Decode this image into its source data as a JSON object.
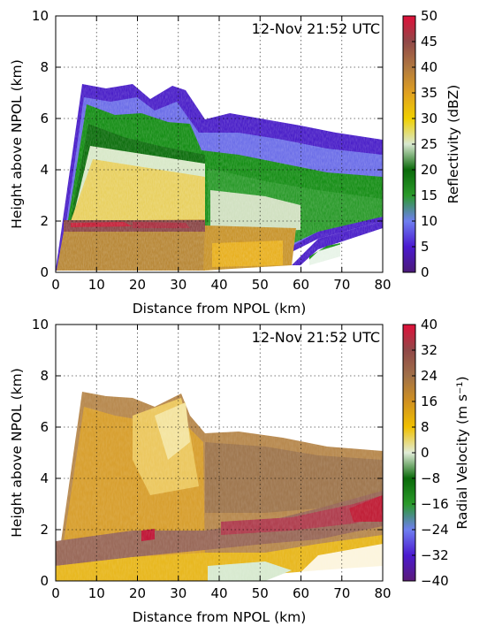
{
  "chart_data": [
    {
      "type": "heatmap",
      "panel": "reflectivity",
      "annotation": "12-Nov 21:52 UTC",
      "xlabel": "Distance from NPOL (km)",
      "ylabel": "Height above NPOL (km)",
      "xlim": [
        0,
        80
      ],
      "ylim": [
        0,
        10
      ],
      "xticks": [
        "0",
        "10",
        "20",
        "30",
        "40",
        "50",
        "60",
        "70",
        "80"
      ],
      "yticks": [
        "0",
        "2",
        "4",
        "6",
        "8",
        "10"
      ],
      "grid": true,
      "colorbar": {
        "label": "Reflectivity (dBZ)",
        "range": [
          0,
          50
        ],
        "ticks": [
          "0",
          "5",
          "10",
          "15",
          "20",
          "25",
          "30",
          "35",
          "40",
          "45",
          "50"
        ],
        "colors": [
          "#4b1a78",
          "#4b1ad0",
          "#6f7ff0",
          "#2a9a2a",
          "#0a6a0a",
          "#d8e8d0",
          "#f0d000",
          "#e0a020",
          "#b07840",
          "#904848",
          "#e0103a"
        ]
      },
      "echo_top_km": [
        [
          5,
          7.3
        ],
        [
          10,
          7.2
        ],
        [
          20,
          6.9
        ],
        [
          30,
          7.1
        ],
        [
          37,
          6.1
        ],
        [
          45,
          5.9
        ],
        [
          60,
          5.6
        ],
        [
          80,
          5.0
        ]
      ],
      "bright_band_height_km": 2.0,
      "bright_band_dbz": 42
    },
    {
      "type": "heatmap",
      "panel": "radial_velocity",
      "annotation": "12-Nov 21:52 UTC",
      "xlabel": "Distance from NPOL (km)",
      "ylabel": "Height above NPOL (km)",
      "xlim": [
        0,
        80
      ],
      "ylim": [
        0,
        10
      ],
      "xticks": [
        "0",
        "10",
        "20",
        "30",
        "40",
        "50",
        "60",
        "70",
        "80"
      ],
      "yticks": [
        "0",
        "2",
        "4",
        "6",
        "8",
        "10"
      ],
      "grid": true,
      "colorbar": {
        "label": "Radial Velocity (m s⁻¹)",
        "range": [
          -40,
          40
        ],
        "ticks": [
          "−40",
          "−32",
          "−24",
          "−16",
          "−8",
          "0",
          "8",
          "16",
          "24",
          "32",
          "40"
        ],
        "colors": [
          "#5a1a78",
          "#4b1ad0",
          "#6f7ff0",
          "#2a9a2a",
          "#0a6a0a",
          "#e0ecd8",
          "#f0c000",
          "#d09020",
          "#a07048",
          "#904848",
          "#e0103a"
        ]
      },
      "echo_top_km": [
        [
          5,
          7.4
        ],
        [
          10,
          7.3
        ],
        [
          20,
          6.9
        ],
        [
          30,
          7.0
        ],
        [
          37,
          6.0
        ],
        [
          45,
          6.0
        ],
        [
          60,
          5.6
        ],
        [
          80,
          5.0
        ]
      ],
      "max_velocity_ms": 32
    }
  ]
}
